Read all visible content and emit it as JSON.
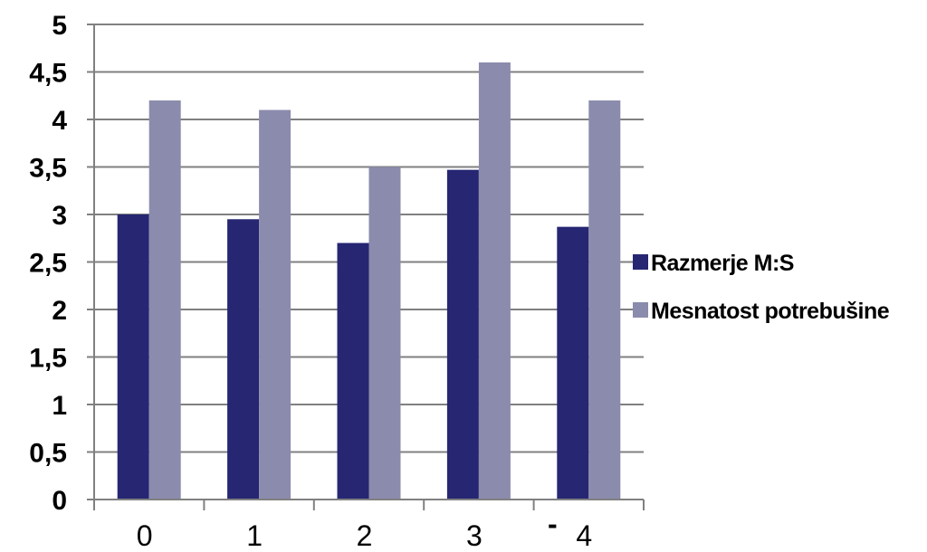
{
  "chart_data": {
    "type": "bar",
    "categories": [
      "0",
      "1",
      "2",
      "3",
      "4"
    ],
    "series": [
      {
        "name": "Razmerje M:S",
        "values": [
          3.0,
          2.95,
          2.7,
          3.47,
          2.87
        ],
        "color": "#262673"
      },
      {
        "name": "Mesnatost potrebušine",
        "values": [
          4.2,
          4.1,
          3.5,
          4.6,
          4.2
        ],
        "color": "#8b8bad"
      }
    ],
    "y_ticks": [
      "0",
      "0,5",
      "1",
      "1,5",
      "2",
      "2,5",
      "3",
      "3,5",
      "4",
      "4,5",
      "5"
    ],
    "ylim": [
      0,
      5
    ],
    "grid": true,
    "legend_position": "right",
    "stray_mark": "-",
    "axis_color": "#808080",
    "grid_color": "#808080"
  }
}
